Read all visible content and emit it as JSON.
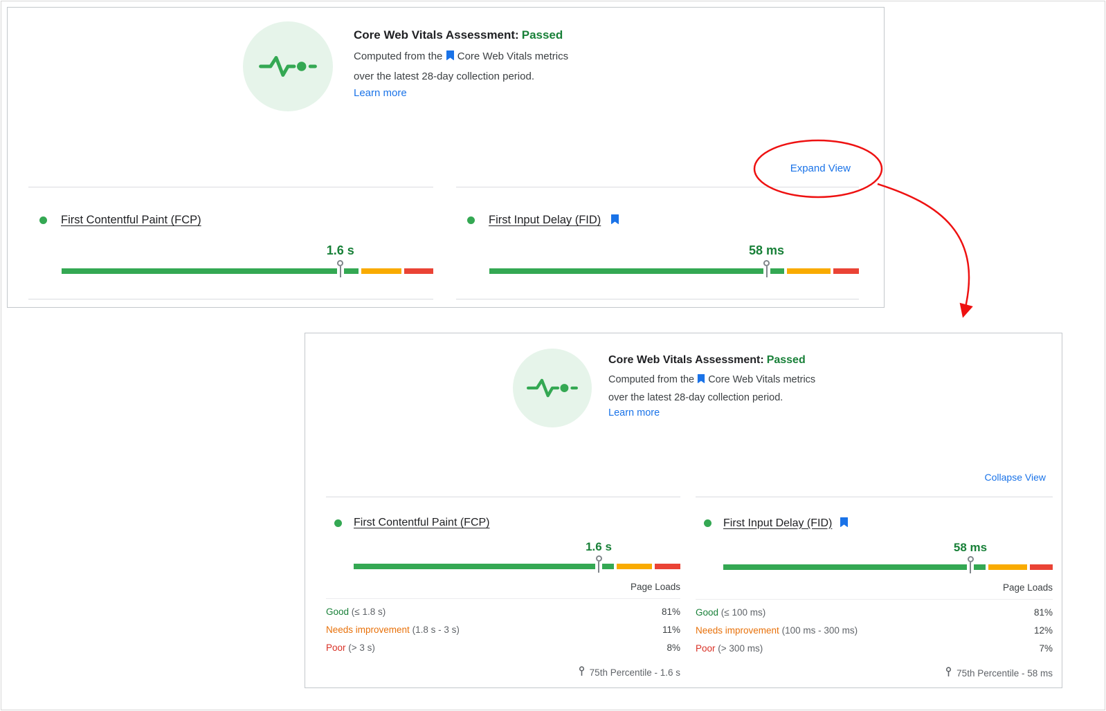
{
  "colors": {
    "good_green": "#34a853",
    "ni_orange": "#f9ab00",
    "poor_red": "#ea4335",
    "passed_green": "#188038",
    "good_text": "#188038",
    "ni_text": "#e8710a",
    "poor_text": "#d93025",
    "link_blue": "#1a73e8",
    "annotation_red": "#ee1111"
  },
  "icons": {
    "assessment": "pulse-line-icon",
    "metric_reference": "bookmark-icon",
    "percentile": "location-pin-icon",
    "metric_status": "green-dot-icon"
  },
  "panel_collapsed": {
    "header": {
      "title": "Core Web Vitals Assessment:",
      "status": "Passed",
      "computed_pre": "Computed from the",
      "computed_link": "Core Web Vitals metrics",
      "computed_line2": "over the latest 28-day collection period.",
      "learn_more": "Learn more"
    },
    "toggle_label": "Expand View",
    "metrics": [
      {
        "name": "First Contentful Paint (FCP)",
        "value": "1.6 s",
        "good_pct": 81,
        "ni_pct": 11,
        "poor_pct": 8,
        "marker_pct": 75
      },
      {
        "name": "First Input Delay (FID)",
        "value": "58 ms",
        "good_pct": 81,
        "ni_pct": 12,
        "poor_pct": 7,
        "marker_pct": 75
      }
    ]
  },
  "panel_expanded": {
    "header": {
      "title": "Core Web Vitals Assessment:",
      "status": "Passed",
      "computed_pre": "Computed from the",
      "computed_link": "Core Web Vitals metrics",
      "computed_line2": "over the latest 28-day collection period.",
      "learn_more": "Learn more"
    },
    "toggle_label": "Collapse View",
    "metrics": [
      {
        "name": "First Contentful Paint (FCP)",
        "value": "1.6 s",
        "good_pct": 81,
        "ni_pct": 11,
        "poor_pct": 8,
        "marker_pct": 75,
        "page_loads_label": "Page Loads",
        "rows": [
          {
            "label": "Good",
            "range": "(≤ 1.8 s)",
            "value": "81%"
          },
          {
            "label": "Needs improvement",
            "range": "(1.8 s - 3 s)",
            "value": "11%"
          },
          {
            "label": "Poor",
            "range": "(> 3 s)",
            "value": "8%"
          }
        ],
        "percentile": "75th Percentile - 1.6 s"
      },
      {
        "name": "First Input Delay (FID)",
        "value": "58 ms",
        "good_pct": 81,
        "ni_pct": 12,
        "poor_pct": 7,
        "marker_pct": 75,
        "page_loads_label": "Page Loads",
        "rows": [
          {
            "label": "Good",
            "range": "(≤ 100 ms)",
            "value": "81%"
          },
          {
            "label": "Needs improvement",
            "range": "(100 ms - 300 ms)",
            "value": "12%"
          },
          {
            "label": "Poor",
            "range": "(> 300 ms)",
            "value": "7%"
          }
        ],
        "percentile": "75th Percentile - 58 ms"
      }
    ]
  }
}
